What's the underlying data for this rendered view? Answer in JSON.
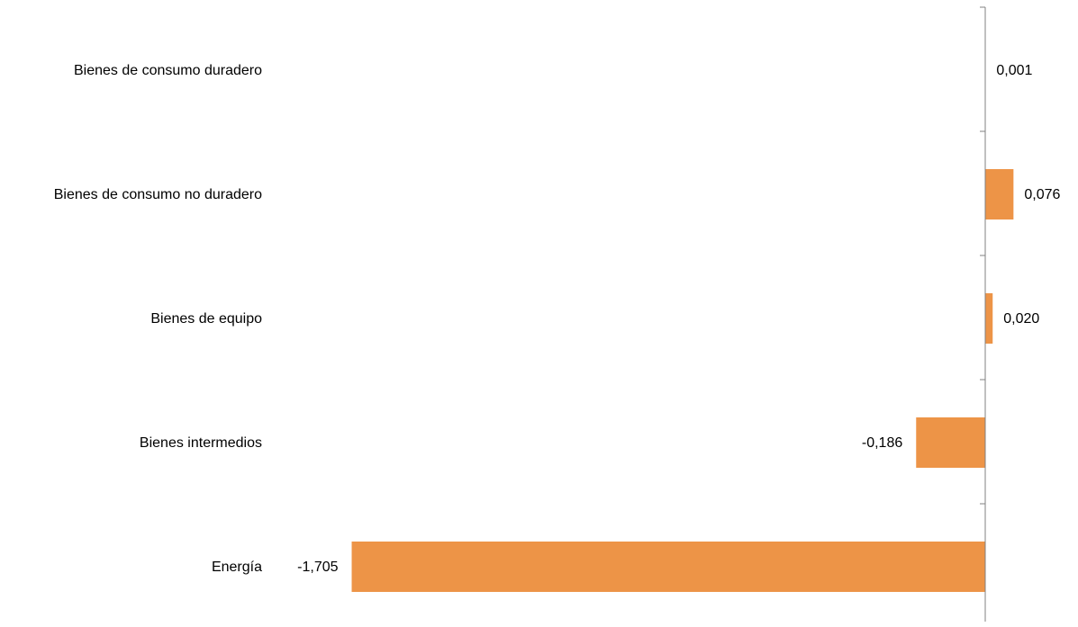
{
  "chart_data": {
    "type": "bar",
    "orientation": "horizontal",
    "categories": [
      "Bienes de consumo duradero",
      "Bienes de consumo no duradero",
      "Bienes de equipo",
      "Bienes intermedios",
      "Energía"
    ],
    "values": [
      0.001,
      0.076,
      0.02,
      -0.186,
      -1.705
    ],
    "value_labels": [
      "0,001",
      "0,076",
      "0,020",
      "-0,186",
      "-1,705"
    ],
    "title": "",
    "xlabel": "",
    "ylabel": "",
    "xlim": [
      -1.705,
      0.076
    ],
    "grid": false,
    "legend": "none",
    "colors": {
      "bar": "#ED9447",
      "axis": "#808080",
      "text": "#000000"
    }
  }
}
